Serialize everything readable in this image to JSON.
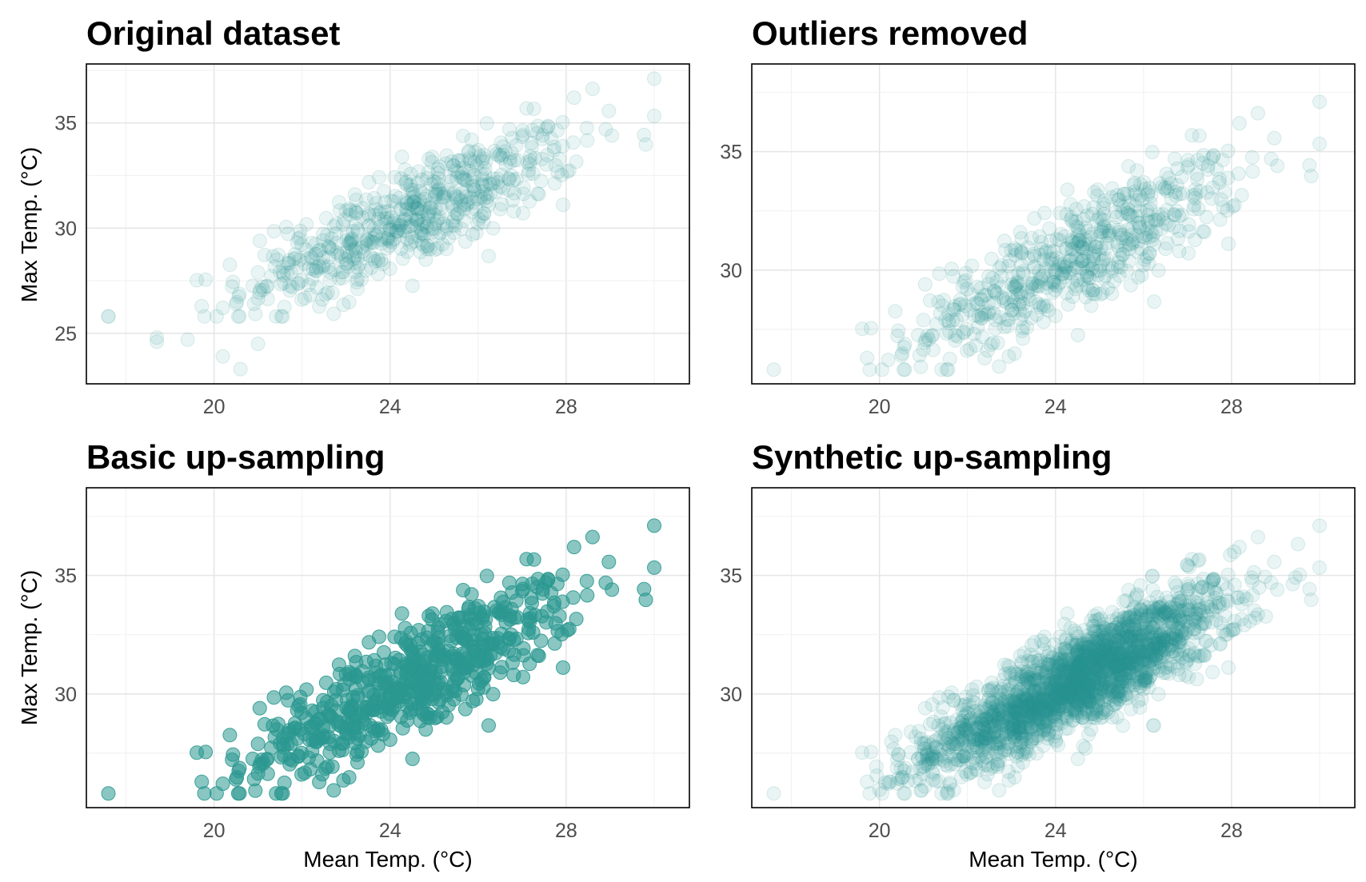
{
  "colors": {
    "point": "#2a9890",
    "frame": "#000000",
    "grid_major": "#e6e6e6",
    "grid_minor": "#f2f2f2",
    "tick_text": "#4d4d4d"
  },
  "chart_data": [
    {
      "type": "scatter",
      "title": "Original dataset",
      "xlabel": "",
      "ylabel": "Max Temp. (°C)",
      "xlim": [
        17.1,
        30.8
      ],
      "ylim": [
        22.6,
        37.8
      ],
      "xticks": [
        20,
        24,
        28
      ],
      "yticks": [
        25,
        30,
        35
      ],
      "point_opacity": 0.1,
      "n_points": 600,
      "n_outliers": 7,
      "grid": true,
      "legend": "none"
    },
    {
      "type": "scatter",
      "title": "Outliers removed",
      "xlabel": "",
      "ylabel": "",
      "xlim": [
        17.1,
        30.8
      ],
      "ylim": [
        25.2,
        38.7
      ],
      "xticks": [
        20,
        24,
        28
      ],
      "yticks": [
        30,
        35
      ],
      "point_opacity": 0.1,
      "n_points": 600,
      "n_outliers": 0,
      "grid": true,
      "legend": "none"
    },
    {
      "type": "scatter",
      "title": "Basic up-sampling",
      "xlabel": "Mean Temp. (°C)",
      "ylabel": "Max Temp. (°C)",
      "xlim": [
        17.1,
        30.8
      ],
      "ylim": [
        25.2,
        38.7
      ],
      "xticks": [
        20,
        24,
        28
      ],
      "yticks": [
        30,
        35
      ],
      "point_opacity": 0.55,
      "n_points": 600,
      "n_outliers": 0,
      "grid": true,
      "legend": "none"
    },
    {
      "type": "scatter",
      "title": "Synthetic up-sampling",
      "xlabel": "Mean Temp. (°C)",
      "ylabel": "",
      "xlim": [
        17.1,
        30.8
      ],
      "ylim": [
        25.2,
        38.7
      ],
      "xticks": [
        20,
        24,
        28
      ],
      "yticks": [
        30,
        35
      ],
      "point_opacity": 0.1,
      "n_points": 2400,
      "n_outliers": 0,
      "grid": true,
      "legend": "none"
    }
  ]
}
